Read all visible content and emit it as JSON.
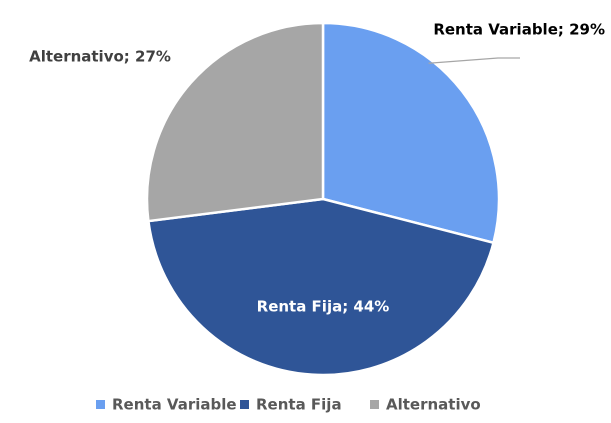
{
  "chart_data": {
    "type": "pie",
    "categories": [
      "Renta Variable",
      "Renta Fija",
      "Alternativo"
    ],
    "values": [
      29,
      44,
      27
    ],
    "value_labels": [
      "Renta Variable; 29%",
      "Renta Fija; 44%",
      "Alternativo; 27%"
    ],
    "colors": [
      "#6a9ff0",
      "#2f5597",
      "#a6a6a6"
    ],
    "legend": "bottom"
  }
}
